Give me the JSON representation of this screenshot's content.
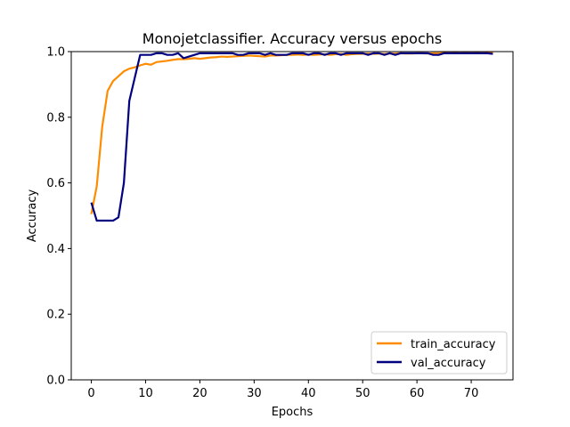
{
  "chart_data": {
    "type": "line",
    "title": "Monojetclassifier. Accuracy versus epochs",
    "xlabel": "Epochs",
    "ylabel": "Accuracy",
    "xlim": [
      -3.7,
      77.7
    ],
    "ylim": [
      0.0,
      1.0
    ],
    "x_ticks": [
      0,
      10,
      20,
      30,
      40,
      50,
      60,
      70
    ],
    "y_ticks": [
      "0.0",
      "0.2",
      "0.4",
      "0.6",
      "0.8",
      "1.0"
    ],
    "grid": false,
    "legend_position": "lower-right",
    "x": [
      0,
      1,
      2,
      3,
      4,
      5,
      6,
      7,
      8,
      9,
      10,
      11,
      12,
      13,
      14,
      15,
      16,
      17,
      18,
      19,
      20,
      21,
      22,
      23,
      24,
      25,
      26,
      27,
      28,
      29,
      30,
      31,
      32,
      33,
      34,
      35,
      36,
      37,
      38,
      39,
      40,
      41,
      42,
      43,
      44,
      45,
      46,
      47,
      48,
      49,
      50,
      51,
      52,
      53,
      54,
      55,
      56,
      57,
      58,
      59,
      60,
      61,
      62,
      63,
      64,
      65,
      66,
      67,
      68,
      69,
      70,
      71,
      72,
      73,
      74
    ],
    "series": [
      {
        "name": "train_accuracy",
        "color": "#ff8c00",
        "values": [
          0.505,
          0.59,
          0.77,
          0.88,
          0.91,
          0.925,
          0.94,
          0.948,
          0.952,
          0.958,
          0.963,
          0.96,
          0.968,
          0.97,
          0.972,
          0.975,
          0.977,
          0.977,
          0.978,
          0.98,
          0.978,
          0.98,
          0.982,
          0.983,
          0.985,
          0.984,
          0.985,
          0.986,
          0.987,
          0.988,
          0.987,
          0.986,
          0.985,
          0.988,
          0.988,
          0.989,
          0.99,
          0.99,
          0.991,
          0.99,
          0.991,
          0.99,
          0.991,
          0.992,
          0.99,
          0.992,
          0.993,
          0.99,
          0.992,
          0.993,
          0.993,
          0.994,
          0.993,
          0.994,
          0.993,
          0.994,
          0.994,
          0.995,
          0.994,
          0.994,
          0.995,
          0.995,
          0.994,
          0.995,
          0.995,
          0.996,
          0.995,
          0.996,
          0.995,
          0.996,
          0.995,
          0.996,
          0.995,
          0.996,
          0.996
        ]
      },
      {
        "name": "val_accuracy",
        "color": "#000080",
        "values": [
          0.54,
          0.485,
          0.485,
          0.485,
          0.485,
          0.495,
          0.6,
          0.85,
          0.92,
          0.99,
          0.99,
          0.99,
          0.995,
          0.995,
          0.99,
          0.99,
          0.995,
          0.98,
          0.985,
          0.99,
          0.995,
          0.995,
          0.995,
          0.995,
          0.995,
          0.995,
          0.995,
          0.99,
          0.99,
          0.995,
          0.995,
          0.995,
          0.99,
          0.995,
          0.99,
          0.99,
          0.99,
          0.995,
          0.995,
          0.995,
          0.99,
          0.995,
          0.995,
          0.99,
          0.995,
          0.995,
          0.99,
          0.995,
          0.995,
          0.995,
          0.995,
          0.99,
          0.995,
          0.995,
          0.99,
          0.995,
          0.99,
          0.995,
          0.995,
          0.995,
          0.995,
          0.995,
          0.995,
          0.99,
          0.99,
          0.995,
          0.995,
          0.995,
          0.995,
          0.995,
          0.995,
          0.995,
          0.995,
          0.995,
          0.993
        ]
      }
    ]
  }
}
